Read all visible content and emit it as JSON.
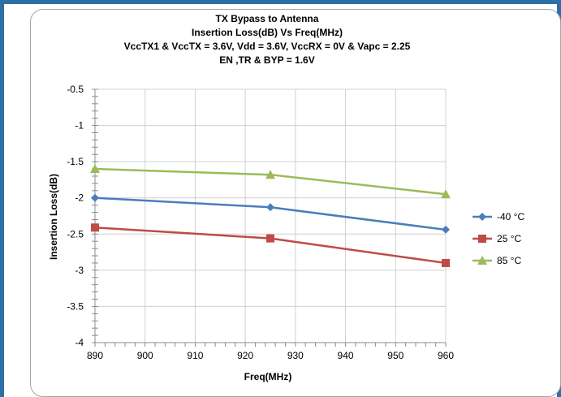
{
  "chart_data": {
    "type": "line",
    "title_lines": [
      "TX Bypass to Antenna",
      "Insertion Loss(dB) Vs Freq(MHz)",
      "VccTX1 & VccTX = 3.6V, Vdd = 3.6V, VccRX  = 0V & Vapc = 2.25",
      "EN ,TR & BYP = 1.6V"
    ],
    "xlabel": "Freq(MHz)",
    "ylabel": "Insertion Loss(dB)",
    "xlim": [
      890,
      960
    ],
    "ylim": [
      -4,
      -0.5
    ],
    "x_ticks": [
      890,
      900,
      910,
      920,
      930,
      940,
      950,
      960
    ],
    "y_ticks": [
      -0.5,
      -1,
      -1.5,
      -2,
      -2.5,
      -3,
      -3.5,
      -4
    ],
    "grid": true,
    "legend_position": "right",
    "x": [
      890,
      925,
      960
    ],
    "series": [
      {
        "name": "-40 °C",
        "values": [
          -2.0,
          -2.13,
          -2.44
        ],
        "color": "#4a7ebb",
        "marker": "diamond"
      },
      {
        "name": "25 °C",
        "values": [
          -2.41,
          -2.56,
          -2.9
        ],
        "color": "#be4b48",
        "marker": "square"
      },
      {
        "name": "85 °C",
        "values": [
          -1.6,
          -1.68,
          -1.95
        ],
        "color": "#9bbb59",
        "marker": "triangle"
      }
    ]
  }
}
